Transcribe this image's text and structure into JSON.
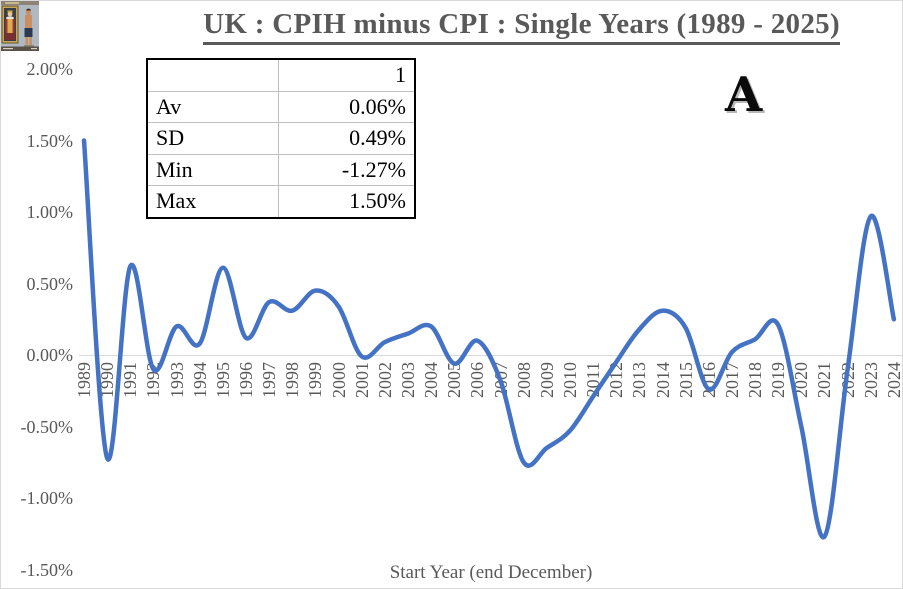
{
  "title": "UK : CPIH minus CPI : Single Years (1989 - 2025)",
  "ornament": {
    "letter": "A"
  },
  "header_image": {
    "name": "king-painting-vs-shirtless-man-thumbnail"
  },
  "stats_table": {
    "column_header": "1",
    "rows": [
      {
        "label": "Av",
        "value": "0.06%"
      },
      {
        "label": "SD",
        "value": "0.49%"
      },
      {
        "label": "Min",
        "value": "-1.27%"
      },
      {
        "label": "Max",
        "value": "1.50%"
      }
    ]
  },
  "chart_data": {
    "type": "line",
    "title": "UK : CPIH minus CPI : Single Years (1989 - 2025)",
    "xlabel": "Start Year (end December)",
    "ylabel": "",
    "x": [
      1989,
      1990,
      1991,
      1992,
      1993,
      1994,
      1995,
      1996,
      1997,
      1998,
      1999,
      2000,
      2001,
      2002,
      2003,
      2004,
      2005,
      2006,
      2007,
      2008,
      2009,
      2010,
      2011,
      2012,
      2013,
      2014,
      2015,
      2016,
      2017,
      2018,
      2019,
      2020,
      2021,
      2022,
      2023,
      2024
    ],
    "values": [
      1.5,
      -0.72,
      0.62,
      -0.1,
      0.2,
      0.08,
      0.61,
      0.12,
      0.37,
      0.31,
      0.45,
      0.34,
      -0.01,
      0.09,
      0.15,
      0.2,
      -0.06,
      0.1,
      -0.18,
      -0.75,
      -0.65,
      -0.53,
      -0.29,
      -0.05,
      0.18,
      0.31,
      0.19,
      -0.24,
      0.02,
      0.11,
      0.21,
      -0.5,
      -1.27,
      -0.1,
      0.97,
      0.25
    ],
    "y_ticks": [
      "2.00%",
      "1.50%",
      "1.00%",
      "0.50%",
      "0.00%",
      "-0.50%",
      "-1.00%",
      "-1.50%"
    ],
    "ylim": [
      -1.5,
      2.0
    ],
    "grid": "off",
    "legend": "none",
    "smoothed": true,
    "line_color": "#4472C4",
    "axis_color": "#D9D9D9",
    "label_color": "#595959"
  }
}
